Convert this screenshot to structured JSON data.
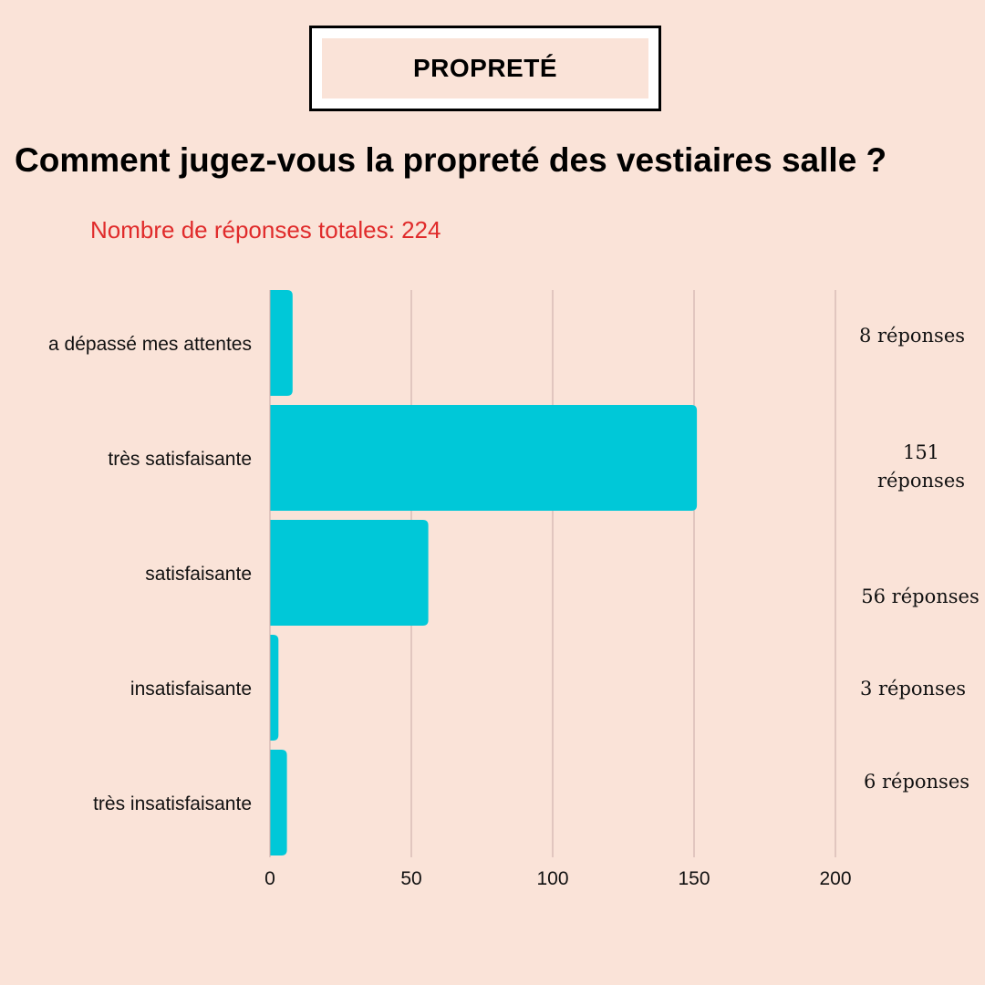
{
  "header": {
    "badge_label": "PROPRETÉ"
  },
  "question": "Comment jugez-vous la propreté des vestiaires salle ?",
  "total_text": "Nombre de réponses totales: 224",
  "colors": {
    "background": "#fae3d8",
    "bar": "#00c8d8",
    "total_text": "#e02b2b",
    "grid": "#c8aaa6"
  },
  "chart_data": {
    "type": "bar",
    "orientation": "horizontal",
    "categories": [
      "a dépassé mes attentes",
      "très satisfaisante",
      "satisfaisante",
      "insatisfaisante",
      "très insatisfaisante"
    ],
    "values": [
      8,
      151,
      56,
      3,
      6
    ],
    "value_labels": [
      [
        "8 réponses"
      ],
      [
        "151",
        "réponses"
      ],
      [
        "56 réponses"
      ],
      [
        "3 réponses"
      ],
      [
        "6 réponses"
      ]
    ],
    "xticks": [
      "0",
      "50",
      "100",
      "150",
      "200"
    ],
    "xlim": [
      0,
      200
    ],
    "grid": true
  }
}
